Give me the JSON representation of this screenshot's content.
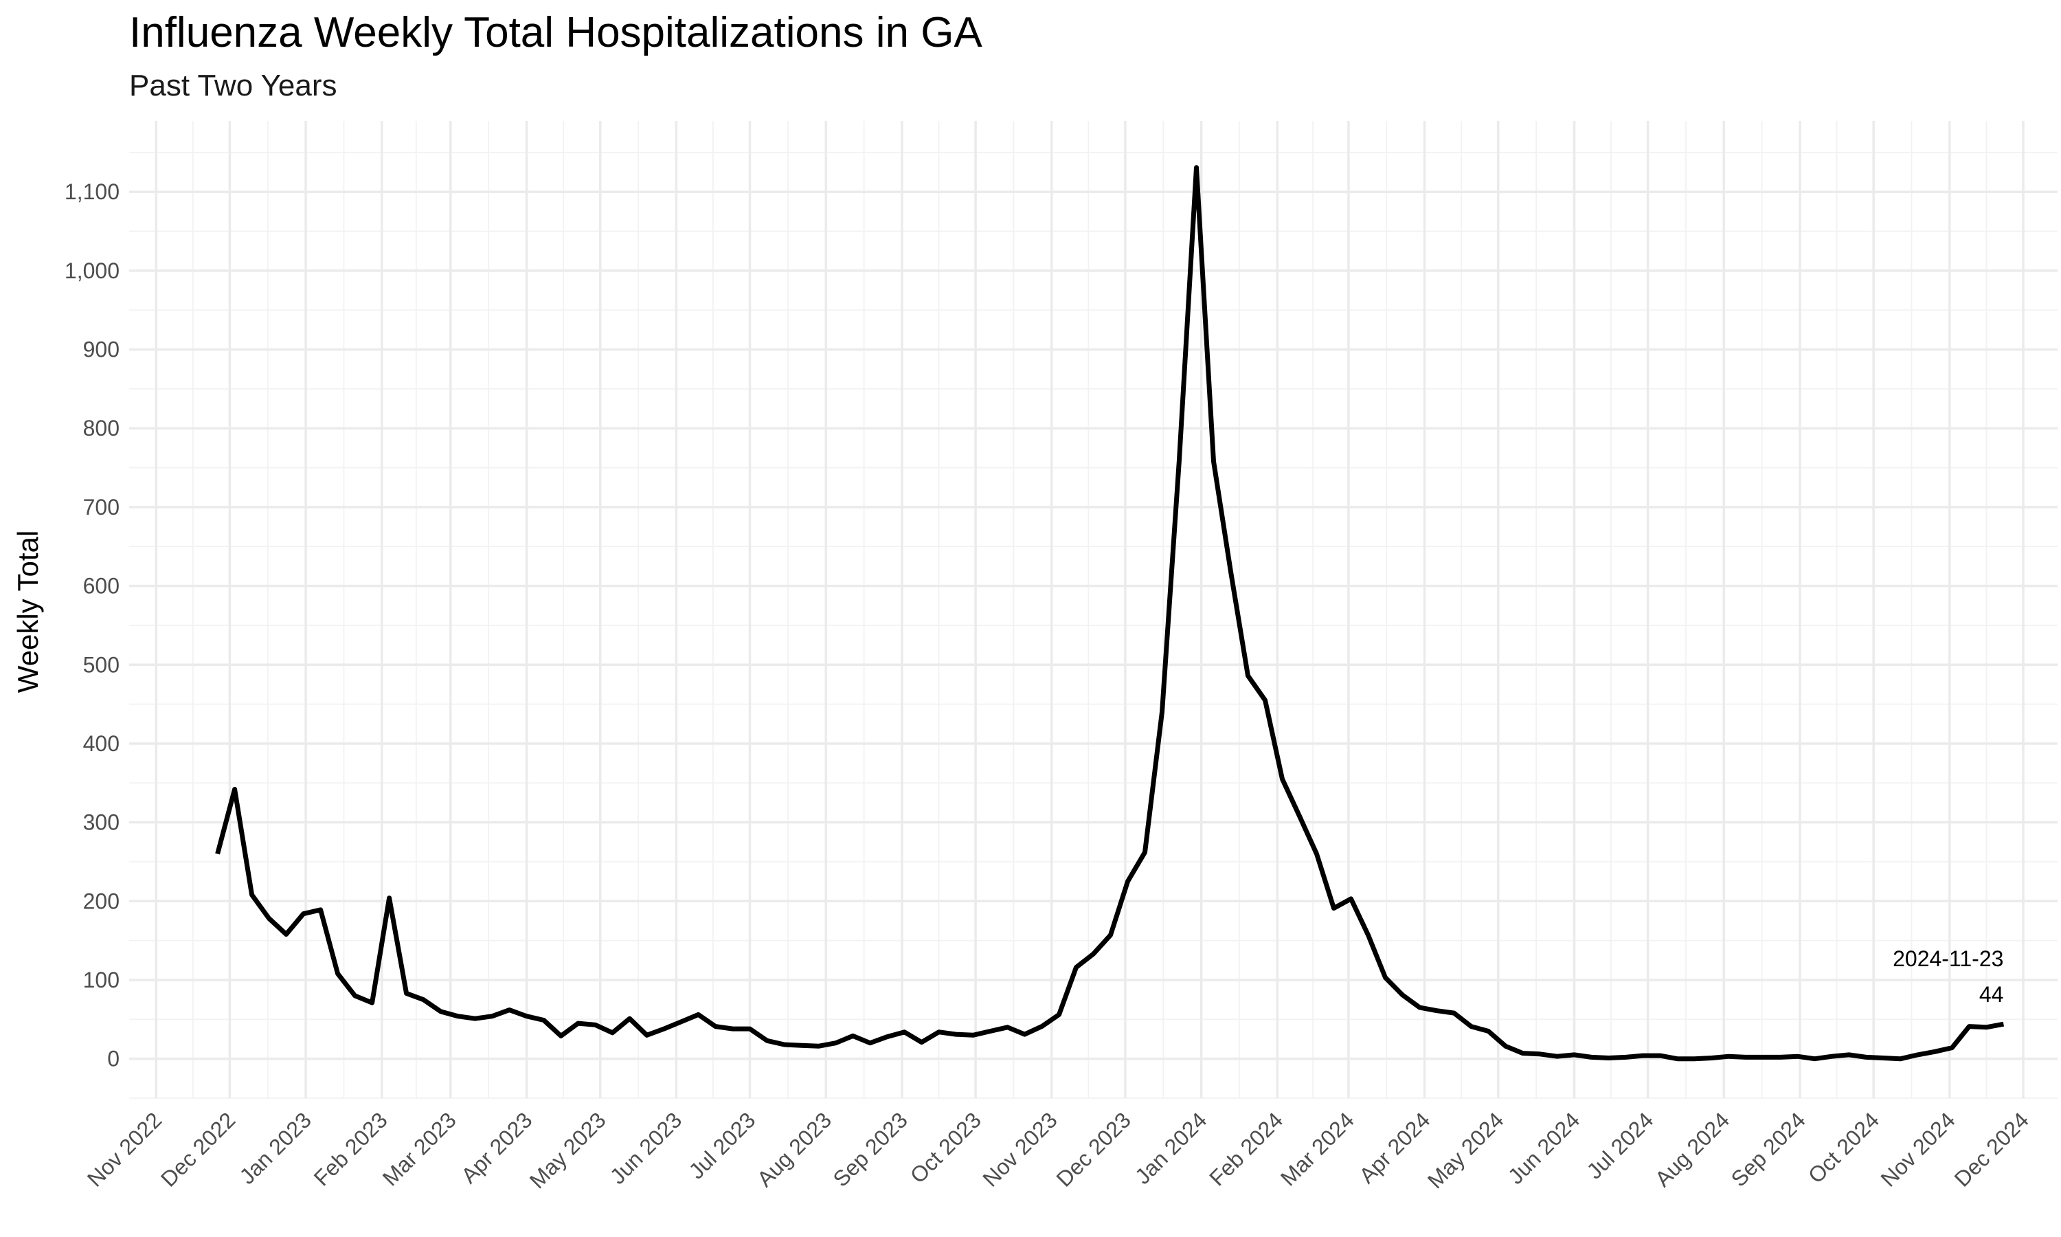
{
  "chart_data": {
    "type": "line",
    "title": "Influenza Weekly Total Hospitalizations in GA",
    "subtitle": "Past Two Years",
    "xlabel": "",
    "ylabel": "Weekly Total",
    "y_ticks": [
      0,
      100,
      200,
      300,
      400,
      500,
      600,
      700,
      800,
      900,
      1000,
      1100
    ],
    "y_tick_labels": [
      "0",
      "100",
      "200",
      "300",
      "400",
      "500",
      "600",
      "700",
      "800",
      "900",
      "1,000",
      "1,100"
    ],
    "ylim": [
      -50,
      1190
    ],
    "xlim": [
      "2022-10-21",
      "2024-12-15"
    ],
    "x_ticks": [
      "2022-11-01",
      "2022-12-01",
      "2023-01-01",
      "2023-02-01",
      "2023-03-01",
      "2023-04-01",
      "2023-05-01",
      "2023-06-01",
      "2023-07-01",
      "2023-08-01",
      "2023-09-01",
      "2023-10-01",
      "2023-11-01",
      "2023-12-01",
      "2024-01-01",
      "2024-02-01",
      "2024-03-01",
      "2024-04-01",
      "2024-05-01",
      "2024-06-01",
      "2024-07-01",
      "2024-08-01",
      "2024-09-01",
      "2024-10-01",
      "2024-11-01",
      "2024-12-01"
    ],
    "x_tick_labels": [
      "Nov 2022",
      "Dec 2022",
      "Jan 2023",
      "Feb 2023",
      "Mar 2023",
      "Apr 2023",
      "May 2023",
      "Jun 2023",
      "Jul 2023",
      "Aug 2023",
      "Sep 2023",
      "Oct 2023",
      "Nov 2023",
      "Dec 2023",
      "Jan 2024",
      "Feb 2024",
      "Mar 2024",
      "Apr 2024",
      "May 2024",
      "Jun 2024",
      "Jul 2024",
      "Aug 2024",
      "Sep 2024",
      "Oct 2024",
      "Nov 2024",
      "Dec 2024"
    ],
    "grid": true,
    "legend": "none",
    "line_color": "#000000",
    "series": [
      {
        "x": [
          "2022-11-26",
          "2022-12-03",
          "2022-12-10",
          "2022-12-17",
          "2022-12-24",
          "2022-12-31",
          "2023-01-07",
          "2023-01-14",
          "2023-01-21",
          "2023-01-28",
          "2023-02-04",
          "2023-02-11",
          "2023-02-18",
          "2023-02-25",
          "2023-03-04",
          "2023-03-11",
          "2023-03-18",
          "2023-03-25",
          "2023-04-01",
          "2023-04-08",
          "2023-04-15",
          "2023-04-22",
          "2023-04-29",
          "2023-05-06",
          "2023-05-13",
          "2023-05-20",
          "2023-05-27",
          "2023-06-03",
          "2023-06-10",
          "2023-06-17",
          "2023-06-24",
          "2023-07-01",
          "2023-07-08",
          "2023-07-15",
          "2023-07-22",
          "2023-07-29",
          "2023-08-05",
          "2023-08-12",
          "2023-08-19",
          "2023-08-26",
          "2023-09-02",
          "2023-09-09",
          "2023-09-16",
          "2023-09-23",
          "2023-09-30",
          "2023-10-07",
          "2023-10-14",
          "2023-10-21",
          "2023-10-28",
          "2023-11-04",
          "2023-11-11",
          "2023-11-18",
          "2023-11-25",
          "2023-12-02",
          "2023-12-09",
          "2023-12-16",
          "2023-12-23",
          "2023-12-30",
          "2024-01-06",
          "2024-01-13",
          "2024-01-20",
          "2024-01-27",
          "2024-02-03",
          "2024-02-10",
          "2024-02-17",
          "2024-02-24",
          "2024-03-02",
          "2024-03-09",
          "2024-03-16",
          "2024-03-23",
          "2024-03-30",
          "2024-04-06",
          "2024-04-13",
          "2024-04-20",
          "2024-04-27",
          "2024-05-04",
          "2024-05-11",
          "2024-05-18",
          "2024-05-25",
          "2024-06-01",
          "2024-06-08",
          "2024-06-15",
          "2024-06-22",
          "2024-06-29",
          "2024-07-06",
          "2024-07-13",
          "2024-07-20",
          "2024-07-27",
          "2024-08-03",
          "2024-08-10",
          "2024-08-17",
          "2024-08-24",
          "2024-08-31",
          "2024-09-07",
          "2024-09-14",
          "2024-09-21",
          "2024-09-28",
          "2024-10-05",
          "2024-10-12",
          "2024-10-19",
          "2024-10-26",
          "2024-11-02",
          "2024-11-09",
          "2024-11-16",
          "2024-11-23"
        ],
        "y": [
          260,
          342,
          208,
          178,
          158,
          184,
          189,
          108,
          80,
          71,
          204,
          83,
          75,
          60,
          54,
          51,
          54,
          62,
          54,
          49,
          29,
          45,
          43,
          33,
          51,
          30,
          38,
          47,
          56,
          41,
          38,
          38,
          23,
          18,
          17,
          16,
          20,
          29,
          20,
          28,
          34,
          21,
          34,
          31,
          30,
          35,
          40,
          31,
          41,
          56,
          116,
          133,
          157,
          225,
          262,
          440,
          760,
          1131,
          758,
          618,
          486,
          455,
          355,
          308,
          260,
          191,
          203,
          157,
          103,
          81,
          65,
          61,
          58,
          41,
          35,
          16,
          7,
          6,
          3,
          5,
          2,
          1,
          2,
          4,
          4,
          0,
          0,
          1,
          3,
          2,
          2,
          2,
          3,
          0,
          3,
          5,
          2,
          1,
          0,
          5,
          9,
          14,
          41,
          40,
          44
        ]
      }
    ],
    "annotations": [
      {
        "x": "2024-11-23",
        "y": 44,
        "text_date": "2024-11-23",
        "text_value": "44"
      }
    ]
  }
}
